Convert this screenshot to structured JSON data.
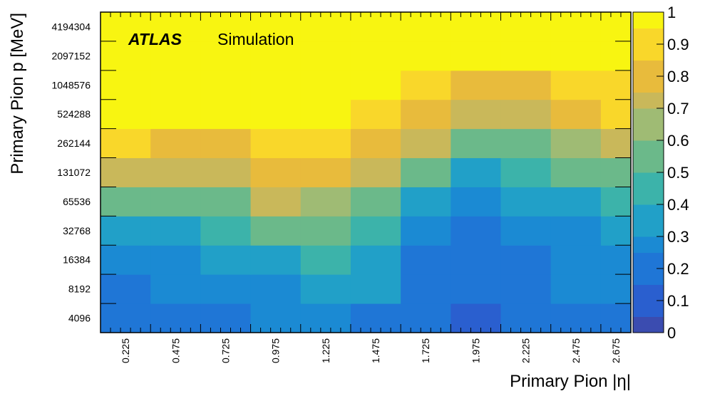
{
  "chart_data": {
    "type": "heatmap",
    "watermark": {
      "brand": "ATLAS",
      "label": "Simulation"
    },
    "xlabel": "Primary Pion |η|",
    "ylabel": "Primary Pion p [MeV]",
    "x_tick_labels": [
      "0.225",
      "0.475",
      "0.725",
      "0.975",
      "1.225",
      "1.475",
      "1.725",
      "1.975",
      "2.225",
      "2.475",
      "2.675"
    ],
    "y_tick_labels": [
      "4096",
      "8192",
      "16384",
      "32768",
      "65536",
      "131072",
      "262144",
      "524288",
      "1048576",
      "2097152",
      "4194304"
    ],
    "xlim": [
      0.1,
      2.75
    ],
    "z_range": [
      0,
      1
    ],
    "colorbar_ticks": [
      "0",
      "0.1",
      "0.2",
      "0.3",
      "0.4",
      "0.5",
      "0.6",
      "0.7",
      "0.8",
      "0.9",
      "1"
    ],
    "colormap": [
      "#3b4cb0",
      "#2a5fcf",
      "#1f76d6",
      "#1b8ad3",
      "#21a0c8",
      "#3cb3aa",
      "#6bb98a",
      "#9fbb74",
      "#c9b85a",
      "#e8bb3c",
      "#f9d72a",
      "#f8f511"
    ],
    "rows": [
      {
        "p": "4096",
        "cells": [
          {
            "x0": 0.1,
            "x1": 0.35,
            "v": 0.14
          },
          {
            "x0": 0.35,
            "x1": 0.6,
            "v": 0.19
          },
          {
            "x0": 0.6,
            "x1": 0.85,
            "v": 0.21
          },
          {
            "x0": 0.85,
            "x1": 1.1,
            "v": 0.23
          },
          {
            "x0": 1.1,
            "x1": 1.35,
            "v": 0.24
          },
          {
            "x0": 1.35,
            "x1": 1.6,
            "v": 0.22
          },
          {
            "x0": 1.6,
            "x1": 1.85,
            "v": 0.17
          },
          {
            "x0": 1.85,
            "x1": 2.1,
            "v": 0.13
          },
          {
            "x0": 2.1,
            "x1": 2.35,
            "v": 0.15
          },
          {
            "x0": 2.35,
            "x1": 2.6,
            "v": 0.17
          },
          {
            "x0": 2.6,
            "x1": 2.75,
            "v": 0.19
          }
        ]
      },
      {
        "p": "8192",
        "cells": [
          {
            "x0": 0.1,
            "x1": 0.35,
            "v": 0.22
          },
          {
            "x0": 0.35,
            "x1": 0.6,
            "v": 0.26
          },
          {
            "x0": 0.6,
            "x1": 0.85,
            "v": 0.3
          },
          {
            "x0": 0.85,
            "x1": 1.1,
            "v": 0.31
          },
          {
            "x0": 1.1,
            "x1": 1.35,
            "v": 0.39
          },
          {
            "x0": 1.35,
            "x1": 1.6,
            "v": 0.32
          },
          {
            "x0": 1.6,
            "x1": 1.85,
            "v": 0.18
          },
          {
            "x0": 1.85,
            "x1": 2.1,
            "v": 0.17
          },
          {
            "x0": 2.1,
            "x1": 2.35,
            "v": 0.2
          },
          {
            "x0": 2.35,
            "x1": 2.6,
            "v": 0.23
          },
          {
            "x0": 2.6,
            "x1": 2.75,
            "v": 0.26
          }
        ]
      },
      {
        "p": "16384",
        "cells": [
          {
            "x0": 0.1,
            "x1": 0.35,
            "v": 0.26
          },
          {
            "x0": 0.35,
            "x1": 0.6,
            "v": 0.29
          },
          {
            "x0": 0.6,
            "x1": 0.85,
            "v": 0.33
          },
          {
            "x0": 0.85,
            "x1": 1.1,
            "v": 0.37
          },
          {
            "x0": 1.1,
            "x1": 1.35,
            "v": 0.42
          },
          {
            "x0": 1.35,
            "x1": 1.6,
            "v": 0.33
          },
          {
            "x0": 1.6,
            "x1": 1.85,
            "v": 0.2
          },
          {
            "x0": 1.85,
            "x1": 2.1,
            "v": 0.16
          },
          {
            "x0": 2.1,
            "x1": 2.35,
            "v": 0.21
          },
          {
            "x0": 2.35,
            "x1": 2.6,
            "v": 0.25
          },
          {
            "x0": 2.6,
            "x1": 2.75,
            "v": 0.29
          }
        ]
      },
      {
        "p": "32768",
        "cells": [
          {
            "x0": 0.1,
            "x1": 0.35,
            "v": 0.36
          },
          {
            "x0": 0.35,
            "x1": 0.6,
            "v": 0.38
          },
          {
            "x0": 0.6,
            "x1": 0.85,
            "v": 0.44
          },
          {
            "x0": 0.85,
            "x1": 1.1,
            "v": 0.55
          },
          {
            "x0": 1.1,
            "x1": 1.35,
            "v": 0.55
          },
          {
            "x0": 1.35,
            "x1": 1.6,
            "v": 0.45
          },
          {
            "x0": 1.6,
            "x1": 1.85,
            "v": 0.26
          },
          {
            "x0": 1.85,
            "x1": 2.1,
            "v": 0.22
          },
          {
            "x0": 2.1,
            "x1": 2.35,
            "v": 0.27
          },
          {
            "x0": 2.35,
            "x1": 2.6,
            "v": 0.31
          },
          {
            "x0": 2.6,
            "x1": 2.75,
            "v": 0.36
          }
        ]
      },
      {
        "p": "65536",
        "cells": [
          {
            "x0": 0.1,
            "x1": 0.35,
            "v": 0.51
          },
          {
            "x0": 0.35,
            "x1": 0.6,
            "v": 0.52
          },
          {
            "x0": 0.6,
            "x1": 0.85,
            "v": 0.57
          },
          {
            "x0": 0.85,
            "x1": 1.1,
            "v": 0.7
          },
          {
            "x0": 1.1,
            "x1": 1.35,
            "v": 0.68
          },
          {
            "x0": 1.35,
            "x1": 1.6,
            "v": 0.52
          },
          {
            "x0": 1.6,
            "x1": 1.85,
            "v": 0.36
          },
          {
            "x0": 1.85,
            "x1": 2.1,
            "v": 0.3
          },
          {
            "x0": 2.1,
            "x1": 2.35,
            "v": 0.33
          },
          {
            "x0": 2.35,
            "x1": 2.6,
            "v": 0.37
          },
          {
            "x0": 2.6,
            "x1": 2.75,
            "v": 0.42
          }
        ]
      },
      {
        "p": "131072",
        "cells": [
          {
            "x0": 0.1,
            "x1": 0.35,
            "v": 0.73
          },
          {
            "x0": 0.35,
            "x1": 0.6,
            "v": 0.72
          },
          {
            "x0": 0.6,
            "x1": 0.85,
            "v": 0.75
          },
          {
            "x0": 0.85,
            "x1": 1.1,
            "v": 0.86
          },
          {
            "x0": 1.1,
            "x1": 1.35,
            "v": 0.82
          },
          {
            "x0": 1.35,
            "x1": 1.6,
            "v": 0.7
          },
          {
            "x0": 1.6,
            "x1": 1.85,
            "v": 0.5
          },
          {
            "x0": 1.85,
            "x1": 2.1,
            "v": 0.39
          },
          {
            "x0": 2.1,
            "x1": 2.35,
            "v": 0.44
          },
          {
            "x0": 2.35,
            "x1": 2.6,
            "v": 0.5
          },
          {
            "x0": 2.6,
            "x1": 2.75,
            "v": 0.56
          }
        ]
      },
      {
        "p": "262144",
        "cells": [
          {
            "x0": 0.1,
            "x1": 0.35,
            "v": 0.88
          },
          {
            "x0": 0.35,
            "x1": 0.6,
            "v": 0.85
          },
          {
            "x0": 0.6,
            "x1": 0.85,
            "v": 0.86
          },
          {
            "x0": 0.85,
            "x1": 1.1,
            "v": 0.91
          },
          {
            "x0": 1.1,
            "x1": 1.35,
            "v": 0.89
          },
          {
            "x0": 1.35,
            "x1": 1.6,
            "v": 0.86
          },
          {
            "x0": 1.6,
            "x1": 1.85,
            "v": 0.72
          },
          {
            "x0": 1.85,
            "x1": 2.1,
            "v": 0.5
          },
          {
            "x0": 2.1,
            "x1": 2.35,
            "v": 0.57
          },
          {
            "x0": 2.35,
            "x1": 2.6,
            "v": 0.66
          },
          {
            "x0": 2.6,
            "x1": 2.75,
            "v": 0.7
          }
        ]
      },
      {
        "p": "524288",
        "cells": [
          {
            "x0": 0.1,
            "x1": 0.35,
            "v": 1.0
          },
          {
            "x0": 0.35,
            "x1": 0.6,
            "v": 0.96
          },
          {
            "x0": 0.6,
            "x1": 0.85,
            "v": 0.99
          },
          {
            "x0": 0.85,
            "x1": 1.1,
            "v": 1.0
          },
          {
            "x0": 1.1,
            "x1": 1.35,
            "v": 0.96
          },
          {
            "x0": 1.35,
            "x1": 1.6,
            "v": 0.95
          },
          {
            "x0": 1.6,
            "x1": 1.85,
            "v": 0.85
          },
          {
            "x0": 1.85,
            "x1": 2.1,
            "v": 0.71
          },
          {
            "x0": 2.1,
            "x1": 2.35,
            "v": 0.76
          },
          {
            "x0": 2.35,
            "x1": 2.6,
            "v": 0.85
          },
          {
            "x0": 2.6,
            "x1": 2.75,
            "v": 0.89
          }
        ]
      },
      {
        "p": "1048576",
        "cells": [
          {
            "x0": 0.1,
            "x1": 0.35,
            "v": 1.0
          },
          {
            "x0": 0.35,
            "x1": 0.6,
            "v": 1.0
          },
          {
            "x0": 0.6,
            "x1": 0.85,
            "v": 1.0
          },
          {
            "x0": 0.85,
            "x1": 1.1,
            "v": 1.0
          },
          {
            "x0": 1.1,
            "x1": 1.35,
            "v": 1.0
          },
          {
            "x0": 1.35,
            "x1": 1.6,
            "v": 1.0
          },
          {
            "x0": 1.6,
            "x1": 1.85,
            "v": 0.94
          },
          {
            "x0": 1.85,
            "x1": 2.1,
            "v": 0.82
          },
          {
            "x0": 2.1,
            "x1": 2.35,
            "v": 0.85
          },
          {
            "x0": 2.35,
            "x1": 2.6,
            "v": 0.9
          },
          {
            "x0": 2.6,
            "x1": 2.75,
            "v": 0.93
          }
        ]
      },
      {
        "p": "2097152",
        "cells": [
          {
            "x0": 0.1,
            "x1": 0.35,
            "v": 1.0
          },
          {
            "x0": 0.35,
            "x1": 0.6,
            "v": 1.0
          },
          {
            "x0": 0.6,
            "x1": 0.85,
            "v": 1.0
          },
          {
            "x0": 0.85,
            "x1": 1.1,
            "v": 1.0
          },
          {
            "x0": 1.1,
            "x1": 1.35,
            "v": 1.0
          },
          {
            "x0": 1.35,
            "x1": 1.6,
            "v": 1.0
          },
          {
            "x0": 1.6,
            "x1": 1.85,
            "v": 1.0
          },
          {
            "x0": 1.85,
            "x1": 2.1,
            "v": 0.97
          },
          {
            "x0": 2.1,
            "x1": 2.35,
            "v": 1.0
          },
          {
            "x0": 2.35,
            "x1": 2.6,
            "v": 1.0
          },
          {
            "x0": 2.6,
            "x1": 2.75,
            "v": 1.0
          }
        ]
      },
      {
        "p": "4194304",
        "cells": [
          {
            "x0": 0.1,
            "x1": 0.35,
            "v": 1.0
          },
          {
            "x0": 0.35,
            "x1": 0.6,
            "v": 1.0
          },
          {
            "x0": 0.6,
            "x1": 0.85,
            "v": 1.0
          },
          {
            "x0": 0.85,
            "x1": 1.1,
            "v": 1.0
          },
          {
            "x0": 1.1,
            "x1": 1.35,
            "v": 1.0
          },
          {
            "x0": 1.35,
            "x1": 1.6,
            "v": 1.0
          },
          {
            "x0": 1.6,
            "x1": 1.85,
            "v": 1.0
          },
          {
            "x0": 1.85,
            "x1": 2.1,
            "v": 1.0
          },
          {
            "x0": 2.1,
            "x1": 2.35,
            "v": 1.0
          },
          {
            "x0": 2.35,
            "x1": 2.6,
            "v": 1.0
          },
          {
            "x0": 2.6,
            "x1": 2.75,
            "v": 1.0
          }
        ]
      }
    ]
  }
}
